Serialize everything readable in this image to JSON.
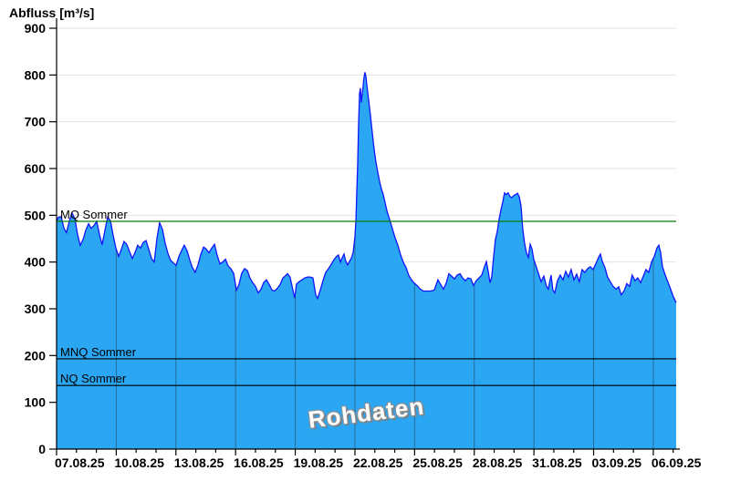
{
  "title": "Abfluss [m³/s]",
  "watermark": "Rohdaten",
  "colors": {
    "background": "#ffffff",
    "area_fill": "#2AA6F2",
    "area_stroke": "#1414FA",
    "grid_horizontal": "#e2e2e2",
    "grid_vertical_over_fill": "#26668f",
    "mq_line": "#087f08",
    "ref_line": "#000000",
    "axis": "#000000",
    "text": "#000000",
    "watermark_fill": "#ffffff",
    "watermark_outline": "#8a8a8a"
  },
  "chart_data": {
    "type": "area",
    "title": "Abfluss [m³/s]",
    "xlabel": "",
    "ylabel": "Abfluss [m³/s]",
    "ylim": [
      0,
      900
    ],
    "y_tick_step": 100,
    "y_tick_labels": [
      "900",
      "800",
      "700",
      "600",
      "500",
      "400",
      "300",
      "200",
      "100",
      "0"
    ],
    "x_tick_labels": [
      "07.08.25",
      "10.08.25",
      "13.08.25",
      "16.08.25",
      "19.08.25",
      "22.08.25",
      "25.08.25",
      "28.08.25",
      "31.08.25",
      "03.09.25",
      "06.09.25"
    ],
    "x_days_span": 31.15,
    "x_major_every_days": 3,
    "x_minor_every_days": 1,
    "grid": "horizontal light-gray under fill; vertical dark lines visible only inside fill",
    "legend": "none",
    "ref_lines": [
      {
        "label": "MQ Sommer",
        "value": 487,
        "color": "#087f08"
      },
      {
        "label": "MNQ Sommer",
        "value": 193,
        "color": "#000000"
      },
      {
        "label": "NQ Sommer",
        "value": 136,
        "color": "#000000"
      }
    ],
    "series": [
      {
        "name": "Abfluss",
        "unit": "m³/s",
        "x_unit": "days since 07.08.25",
        "points": [
          [
            0,
            487
          ],
          [
            0.09,
            496
          ],
          [
            0.23,
            497
          ],
          [
            0.37,
            472
          ],
          [
            0.5,
            463
          ],
          [
            0.64,
            488
          ],
          [
            0.78,
            505
          ],
          [
            0.92,
            492
          ],
          [
            1.06,
            458
          ],
          [
            1.19,
            436
          ],
          [
            1.33,
            448
          ],
          [
            1.47,
            468
          ],
          [
            1.61,
            482
          ],
          [
            1.74,
            472
          ],
          [
            1.88,
            478
          ],
          [
            2.02,
            487
          ],
          [
            2.16,
            458
          ],
          [
            2.29,
            437
          ],
          [
            2.43,
            468
          ],
          [
            2.57,
            496
          ],
          [
            2.71,
            488
          ],
          [
            2.84,
            458
          ],
          [
            2.98,
            430
          ],
          [
            3.12,
            412
          ],
          [
            3.26,
            428
          ],
          [
            3.39,
            444
          ],
          [
            3.53,
            438
          ],
          [
            3.67,
            422
          ],
          [
            3.81,
            408
          ],
          [
            3.94,
            420
          ],
          [
            4.08,
            436
          ],
          [
            4.22,
            430
          ],
          [
            4.36,
            442
          ],
          [
            4.5,
            446
          ],
          [
            4.63,
            428
          ],
          [
            4.77,
            408
          ],
          [
            4.91,
            400
          ],
          [
            5.05,
            452
          ],
          [
            5.18,
            484
          ],
          [
            5.32,
            470
          ],
          [
            5.46,
            440
          ],
          [
            5.6,
            418
          ],
          [
            5.73,
            404
          ],
          [
            5.87,
            398
          ],
          [
            6.01,
            393
          ],
          [
            6.15,
            412
          ],
          [
            6.28,
            424
          ],
          [
            6.42,
            436
          ],
          [
            6.56,
            424
          ],
          [
            6.7,
            404
          ],
          [
            6.83,
            388
          ],
          [
            6.97,
            378
          ],
          [
            7.11,
            394
          ],
          [
            7.25,
            416
          ],
          [
            7.39,
            432
          ],
          [
            7.52,
            428
          ],
          [
            7.66,
            420
          ],
          [
            7.8,
            430
          ],
          [
            7.94,
            438
          ],
          [
            8.07,
            415
          ],
          [
            8.21,
            396
          ],
          [
            8.35,
            400
          ],
          [
            8.49,
            406
          ],
          [
            8.62,
            392
          ],
          [
            8.76,
            386
          ],
          [
            8.9,
            376
          ],
          [
            9.04,
            340
          ],
          [
            9.17,
            352
          ],
          [
            9.31,
            376
          ],
          [
            9.45,
            386
          ],
          [
            9.59,
            382
          ],
          [
            9.72,
            366
          ],
          [
            9.86,
            356
          ],
          [
            10,
            348
          ],
          [
            10.14,
            334
          ],
          [
            10.28,
            342
          ],
          [
            10.41,
            356
          ],
          [
            10.55,
            362
          ],
          [
            10.69,
            352
          ],
          [
            10.83,
            340
          ],
          [
            10.96,
            338
          ],
          [
            11.1,
            344
          ],
          [
            11.24,
            352
          ],
          [
            11.38,
            366
          ],
          [
            11.51,
            371
          ],
          [
            11.61,
            375
          ],
          [
            11.74,
            368
          ],
          [
            11.88,
            340
          ],
          [
            11.97,
            323
          ],
          [
            12.06,
            353
          ],
          [
            12.2,
            358
          ],
          [
            12.34,
            362
          ],
          [
            12.48,
            366
          ],
          [
            12.61,
            368
          ],
          [
            12.75,
            368
          ],
          [
            12.89,
            366
          ],
          [
            13.03,
            330
          ],
          [
            13.12,
            322
          ],
          [
            13.26,
            340
          ],
          [
            13.39,
            360
          ],
          [
            13.53,
            378
          ],
          [
            13.67,
            386
          ],
          [
            13.81,
            395
          ],
          [
            13.94,
            405
          ],
          [
            14.08,
            412
          ],
          [
            14.17,
            415
          ],
          [
            14.27,
            400
          ],
          [
            14.36,
            409
          ],
          [
            14.45,
            417
          ],
          [
            14.54,
            402
          ],
          [
            14.63,
            394
          ],
          [
            14.72,
            401
          ],
          [
            14.82,
            408
          ],
          [
            14.91,
            420
          ],
          [
            15,
            455
          ],
          [
            15.05,
            490
          ],
          [
            15.09,
            545
          ],
          [
            15.14,
            610
          ],
          [
            15.18,
            690
          ],
          [
            15.23,
            760
          ],
          [
            15.27,
            772
          ],
          [
            15.32,
            741
          ],
          [
            15.36,
            757
          ],
          [
            15.41,
            775
          ],
          [
            15.45,
            793
          ],
          [
            15.5,
            806
          ],
          [
            15.55,
            797
          ],
          [
            15.6,
            779
          ],
          [
            15.69,
            746
          ],
          [
            15.78,
            713
          ],
          [
            15.87,
            678
          ],
          [
            15.96,
            643
          ],
          [
            16.06,
            612
          ],
          [
            16.15,
            592
          ],
          [
            16.24,
            572
          ],
          [
            16.33,
            556
          ],
          [
            16.42,
            545
          ],
          [
            16.51,
            528
          ],
          [
            16.61,
            509
          ],
          [
            16.7,
            497
          ],
          [
            16.79,
            484
          ],
          [
            16.88,
            472
          ],
          [
            17.02,
            452
          ],
          [
            17.16,
            436
          ],
          [
            17.29,
            416
          ],
          [
            17.43,
            400
          ],
          [
            17.57,
            388
          ],
          [
            17.7,
            372
          ],
          [
            17.84,
            362
          ],
          [
            17.98,
            355
          ],
          [
            18.12,
            350
          ],
          [
            18.26,
            343
          ],
          [
            18.44,
            338
          ],
          [
            18.62,
            338
          ],
          [
            18.81,
            338
          ],
          [
            18.99,
            340
          ],
          [
            19.17,
            362
          ],
          [
            19.31,
            352
          ],
          [
            19.45,
            342
          ],
          [
            19.59,
            355
          ],
          [
            19.72,
            375
          ],
          [
            19.86,
            370
          ],
          [
            20,
            364
          ],
          [
            20.14,
            372
          ],
          [
            20.28,
            375
          ],
          [
            20.41,
            366
          ],
          [
            20.55,
            360
          ],
          [
            20.69,
            366
          ],
          [
            20.83,
            364
          ],
          [
            20.96,
            350
          ],
          [
            21.1,
            360
          ],
          [
            21.24,
            366
          ],
          [
            21.38,
            372
          ],
          [
            21.51,
            390
          ],
          [
            21.61,
            401
          ],
          [
            21.7,
            380
          ],
          [
            21.79,
            356
          ],
          [
            21.88,
            368
          ],
          [
            21.97,
            410
          ],
          [
            22.06,
            448
          ],
          [
            22.16,
            466
          ],
          [
            22.25,
            492
          ],
          [
            22.34,
            512
          ],
          [
            22.43,
            528
          ],
          [
            22.52,
            548
          ],
          [
            22.61,
            544
          ],
          [
            22.7,
            548
          ],
          [
            22.8,
            540
          ],
          [
            22.89,
            538
          ],
          [
            22.98,
            542
          ],
          [
            23.07,
            544
          ],
          [
            23.17,
            547
          ],
          [
            23.26,
            540
          ],
          [
            23.35,
            520
          ],
          [
            23.44,
            470
          ],
          [
            23.53,
            440
          ],
          [
            23.62,
            420
          ],
          [
            23.72,
            410
          ],
          [
            23.81,
            438
          ],
          [
            23.9,
            428
          ],
          [
            23.99,
            406
          ],
          [
            24.13,
            388
          ],
          [
            24.27,
            370
          ],
          [
            24.36,
            358
          ],
          [
            24.5,
            370
          ],
          [
            24.63,
            348
          ],
          [
            24.72,
            342
          ],
          [
            24.86,
            372
          ],
          [
            24.95,
            340
          ],
          [
            25.05,
            334
          ],
          [
            25.18,
            360
          ],
          [
            25.32,
            372
          ],
          [
            25.46,
            362
          ],
          [
            25.6,
            380
          ],
          [
            25.73,
            368
          ],
          [
            25.87,
            384
          ],
          [
            26.01,
            362
          ],
          [
            26.15,
            374
          ],
          [
            26.28,
            358
          ],
          [
            26.42,
            384
          ],
          [
            26.56,
            378
          ],
          [
            26.7,
            386
          ],
          [
            26.83,
            390
          ],
          [
            26.97,
            384
          ],
          [
            27.11,
            396
          ],
          [
            27.25,
            410
          ],
          [
            27.34,
            417
          ],
          [
            27.43,
            402
          ],
          [
            27.57,
            388
          ],
          [
            27.7,
            368
          ],
          [
            27.84,
            358
          ],
          [
            27.98,
            348
          ],
          [
            28.12,
            342
          ],
          [
            28.26,
            347
          ],
          [
            28.39,
            330
          ],
          [
            28.53,
            338
          ],
          [
            28.67,
            354
          ],
          [
            28.81,
            348
          ],
          [
            28.94,
            372
          ],
          [
            29.08,
            360
          ],
          [
            29.22,
            366
          ],
          [
            29.36,
            356
          ],
          [
            29.5,
            370
          ],
          [
            29.63,
            384
          ],
          [
            29.77,
            378
          ],
          [
            29.91,
            400
          ],
          [
            30.05,
            412
          ],
          [
            30.18,
            430
          ],
          [
            30.28,
            436
          ],
          [
            30.37,
            420
          ],
          [
            30.46,
            390
          ],
          [
            30.6,
            372
          ],
          [
            30.73,
            358
          ],
          [
            30.87,
            342
          ],
          [
            31.01,
            326
          ],
          [
            31.15,
            313
          ]
        ]
      }
    ]
  }
}
